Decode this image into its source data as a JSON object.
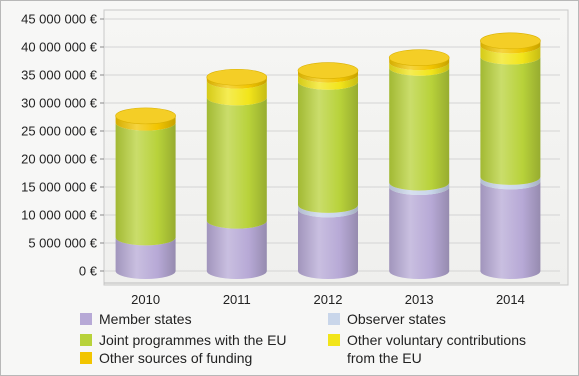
{
  "chart_data": {
    "type": "bar",
    "stacked": true,
    "style": "3d-cylinder",
    "title": "",
    "xlabel": "",
    "ylabel": "",
    "categories": [
      "2010",
      "2011",
      "2012",
      "2013",
      "2014"
    ],
    "ylim": [
      0,
      45000000
    ],
    "ytick_values": [
      0,
      5000000,
      10000000,
      15000000,
      20000000,
      25000000,
      30000000,
      35000000,
      40000000,
      45000000
    ],
    "ytick_labels": [
      "0 €",
      "5 000 000 €",
      "10 000 000 €",
      "15 000 000 €",
      "20 000 000 €",
      "25 000 000 €",
      "30 000 000 €",
      "35 000 000 €",
      "40 000 000 €",
      "45 000 000 €"
    ],
    "grid": true,
    "legend_position": "bottom",
    "series": [
      {
        "name": "Member states",
        "color": "#b7a9d6",
        "values": [
          6000000,
          9000000,
          11000000,
          15000000,
          16000000
        ]
      },
      {
        "name": "Observer states",
        "color": "#c9d6ea",
        "values": [
          0,
          0,
          800000,
          800000,
          800000
        ]
      },
      {
        "name": "Joint programmes with the EU",
        "color": "#b8d23a",
        "values": [
          20500000,
          22000000,
          22000000,
          20500000,
          21500000
        ]
      },
      {
        "name": "Other voluntary contributions\nfrom the EU",
        "color": "#f2e51a",
        "values": [
          0,
          3000000,
          1300000,
          1000000,
          2000000
        ]
      },
      {
        "name": "Other sources of funding",
        "color": "#f2c500",
        "values": [
          1200000,
          600000,
          700000,
          800000,
          800000
        ]
      }
    ]
  }
}
